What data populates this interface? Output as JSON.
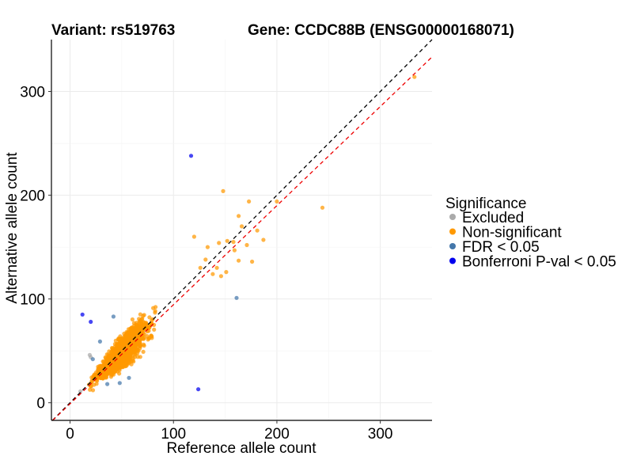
{
  "header": {
    "variant_label": "Variant: rs519763",
    "gene_label": "Gene: CCDC88B (ENSG00000168071)"
  },
  "chart_data": {
    "type": "scatter",
    "title": "",
    "xlabel": "Reference allele count",
    "ylabel": "Alternative allele count",
    "xlim": [
      -18,
      350
    ],
    "ylim": [
      -17,
      350
    ],
    "x_ticks": [
      0,
      100,
      200,
      300
    ],
    "y_ticks": [
      0,
      100,
      200,
      300
    ],
    "grid": true,
    "legend": {
      "title": "Significance",
      "placement": "right",
      "entries": [
        {
          "label": "Excluded",
          "color": "#aaaaaa"
        },
        {
          "label": "Non-significant",
          "color": "#ff9900"
        },
        {
          "label": "FDR < 0.05",
          "color": "#4477aa"
        },
        {
          "label": "Bonferroni P-val < 0.05",
          "color": "#0000ee"
        }
      ]
    },
    "reference_lines": [
      {
        "kind": "identity",
        "slope": 1,
        "intercept": 0,
        "color": "#000000",
        "dash": true
      },
      {
        "kind": "fitted",
        "slope": 0.955,
        "intercept": -1,
        "color": "#ee0000",
        "dash": true
      }
    ],
    "series": [
      {
        "name": "Excluded",
        "color": "#aaaaaa",
        "points": [
          [
            10,
            11
          ],
          [
            19,
            46
          ],
          [
            20,
            44
          ]
        ]
      },
      {
        "name": "Non-significant",
        "color": "#ff9900",
        "cloud": {
          "x_range": [
            14,
            125
          ],
          "ratio_center": 0.98,
          "ratio_spread": 0.17,
          "n_points": 1900
        },
        "points": [
          [
            333,
            314
          ],
          [
            244,
            188
          ],
          [
            200,
            194
          ],
          [
            148,
            204
          ],
          [
            173,
            194
          ],
          [
            120,
            160
          ],
          [
            163,
            180
          ],
          [
            181,
            166
          ],
          [
            187,
            157
          ],
          [
            166,
            170
          ],
          [
            152,
            156
          ],
          [
            144,
            154
          ],
          [
            159,
            147
          ],
          [
            171,
            152
          ],
          [
            163,
            137
          ],
          [
            176,
            136
          ],
          [
            158,
            155
          ],
          [
            133,
            150
          ],
          [
            138,
            124
          ],
          [
            142,
            130
          ],
          [
            146,
            122
          ],
          [
            131,
            138
          ],
          [
            126,
            130
          ],
          [
            151,
            126
          ]
        ]
      },
      {
        "name": "FDR < 0.05",
        "color": "#4477aa",
        "points": [
          [
            161,
            101
          ],
          [
            42,
            83
          ],
          [
            29,
            59
          ],
          [
            48,
            19
          ],
          [
            57,
            24
          ],
          [
            22,
            42
          ],
          [
            36,
            18
          ]
        ]
      },
      {
        "name": "Bonferroni P-val < 0.05",
        "color": "#0000ee",
        "points": [
          [
            117,
            238
          ],
          [
            12,
            85
          ],
          [
            20,
            78
          ],
          [
            124,
            13
          ]
        ]
      }
    ]
  }
}
